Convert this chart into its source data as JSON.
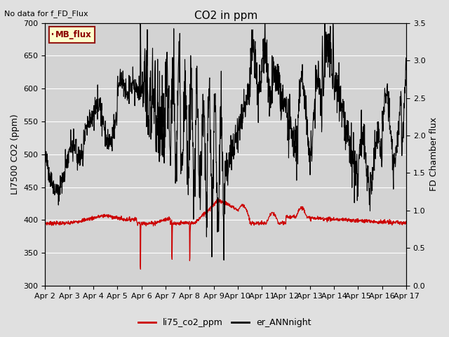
{
  "title": "CO2 in ppm",
  "ylabel_left": "LI7500 CO2 (ppm)",
  "ylabel_right": "FD Chamber flux",
  "ylim_left": [
    300,
    700
  ],
  "ylim_right": [
    0.0,
    3.5
  ],
  "no_data_text": "No data for f_FD_Flux",
  "mb_flux_label": "MB_flux",
  "legend_labels": [
    "li75_co2_ppm",
    "er_ANNnight"
  ],
  "background_color": "#e0e0e0",
  "plot_bg_color": "#d3d3d3",
  "xticklabels": [
    "Apr 2",
    "Apr 3",
    "Apr 4",
    "Apr 5",
    "Apr 6",
    "Apr 7",
    "Apr 8",
    "Apr 9",
    "Apr 10",
    "Apr 11",
    "Apr 12",
    "Apr 13",
    "Apr 14",
    "Apr 15",
    "Apr 16",
    "Apr 17"
  ],
  "red_line_color": "#cc0000",
  "black_line_color": "#000000",
  "figsize": [
    6.4,
    4.8
  ],
  "dpi": 100
}
